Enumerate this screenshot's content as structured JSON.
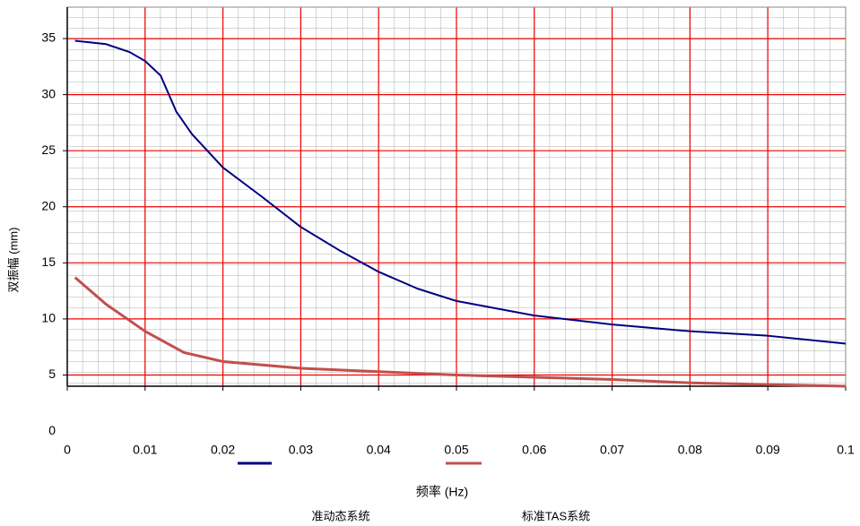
{
  "chart_data": {
    "type": "line",
    "x_label": "频率 (Hz)",
    "y_label": "双振幅 (mm)",
    "xlim": [
      0,
      0.1
    ],
    "xticks": [
      0,
      0.01,
      0.02,
      0.03,
      0.04,
      0.05,
      0.06,
      0.07,
      0.08,
      0.09,
      0.1
    ],
    "ylim": [
      4,
      37.8
    ],
    "yticks": [
      0,
      5,
      10,
      15,
      20,
      25,
      30,
      35
    ],
    "grid": true,
    "series": [
      {
        "name": "准动态系统",
        "color": "#000080",
        "x": [
          0.001,
          0.005,
          0.008,
          0.01,
          0.012,
          0.014,
          0.016,
          0.02,
          0.025,
          0.03,
          0.035,
          0.04,
          0.045,
          0.05,
          0.06,
          0.07,
          0.08,
          0.09,
          0.1
        ],
        "values": [
          34.8,
          34.5,
          33.8,
          33.0,
          31.7,
          28.5,
          26.5,
          23.5,
          20.9,
          18.2,
          16.1,
          14.2,
          12.7,
          11.6,
          10.3,
          9.5,
          8.9,
          8.5,
          7.8
        ]
      },
      {
        "name": "标准TAS系统",
        "color": "#c0504d",
        "x": [
          0.001,
          0.005,
          0.01,
          0.015,
          0.02,
          0.03,
          0.04,
          0.05,
          0.06,
          0.07,
          0.08,
          0.1
        ],
        "values": [
          13.7,
          11.3,
          8.9,
          7.0,
          6.2,
          5.6,
          5.3,
          5.0,
          4.8,
          4.6,
          4.3,
          4.0
        ]
      }
    ]
  }
}
